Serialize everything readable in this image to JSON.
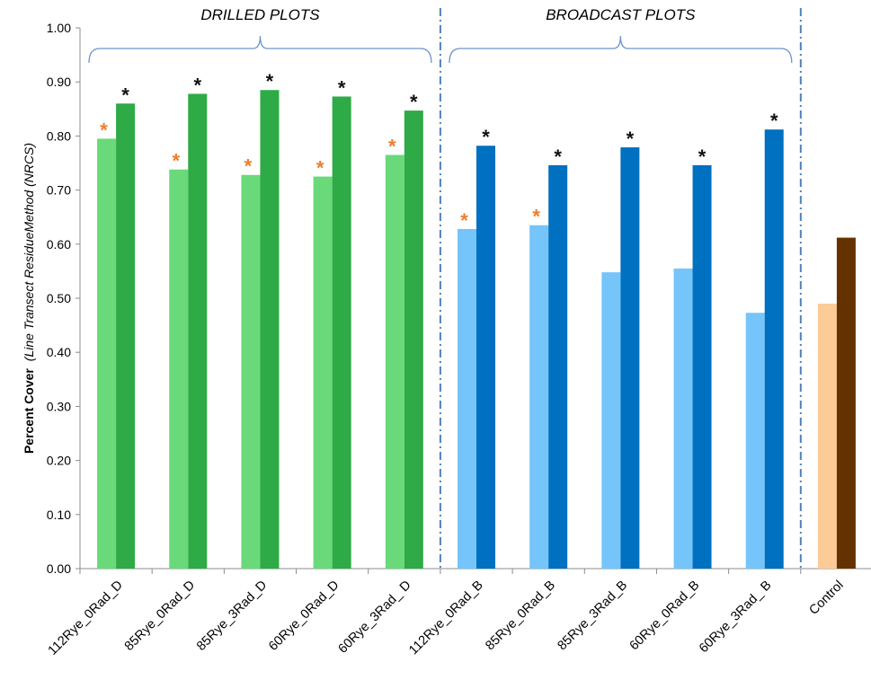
{
  "chart_data": {
    "type": "bar",
    "ylabel_bold": "Percent Cover",
    "ylabel_italic": "(Line Transect ResidueMethod (NRCS)",
    "ylim": [
      0,
      1.0
    ],
    "ytick_step": 0.1,
    "yticks": [
      "0.00",
      "0.10",
      "0.20",
      "0.30",
      "0.40",
      "0.50",
      "0.60",
      "0.70",
      "0.80",
      "0.90",
      "1.00"
    ],
    "grid": false,
    "legend": "none",
    "group_labels": [
      {
        "text": "DRILLED PLOTS",
        "from": 0,
        "to": 4
      },
      {
        "text": "BROADCAST PLOTS",
        "from": 5,
        "to": 9
      }
    ],
    "categories": [
      "112Rye_0Rad_D",
      "85Rye_0Rad_D",
      "85Rye_3Rad_D",
      "60Rye_0Rad_D",
      "60Rye_3Rad_ D",
      "112Rye_0Rad_B",
      "85Rye_0Rad_B",
      "85Rye_3Rad_B",
      "60Rye_0Rad_B",
      "60Rye_3Rad_ B",
      "Control"
    ],
    "series": [
      {
        "values": [
          0.795,
          0.738,
          0.728,
          0.725,
          0.765,
          0.628,
          0.635,
          0.548,
          0.555,
          0.473,
          0.49
        ]
      },
      {
        "values": [
          0.86,
          0.878,
          0.885,
          0.873,
          0.847,
          0.782,
          0.746,
          0.779,
          0.746,
          0.812,
          0.612
        ]
      }
    ],
    "bar_colors": [
      [
        "#69d97a",
        "#2eaa46"
      ],
      [
        "#69d97a",
        "#2eaa46"
      ],
      [
        "#69d97a",
        "#2eaa46"
      ],
      [
        "#69d97a",
        "#2eaa46"
      ],
      [
        "#69d97a",
        "#2eaa46"
      ],
      [
        "#75c4fa",
        "#0070c0"
      ],
      [
        "#75c4fa",
        "#0070c0"
      ],
      [
        "#75c4fa",
        "#0070c0"
      ],
      [
        "#75c4fa",
        "#0070c0"
      ],
      [
        "#75c4fa",
        "#0070c0"
      ],
      [
        "#fdcb95",
        "#643200"
      ]
    ],
    "annotations": {
      "symbol": "*",
      "series1_marked": [
        true,
        true,
        true,
        true,
        true,
        true,
        true,
        false,
        false,
        false,
        false
      ],
      "series2_marked": [
        true,
        true,
        true,
        true,
        true,
        true,
        true,
        true,
        true,
        true,
        false
      ],
      "series1_color": "#ee7d28",
      "series2_color": "#111111"
    },
    "separator_color": "#4f81bd",
    "axis_color": "#8c8c8c",
    "bracket_color": "#6d93c7"
  }
}
